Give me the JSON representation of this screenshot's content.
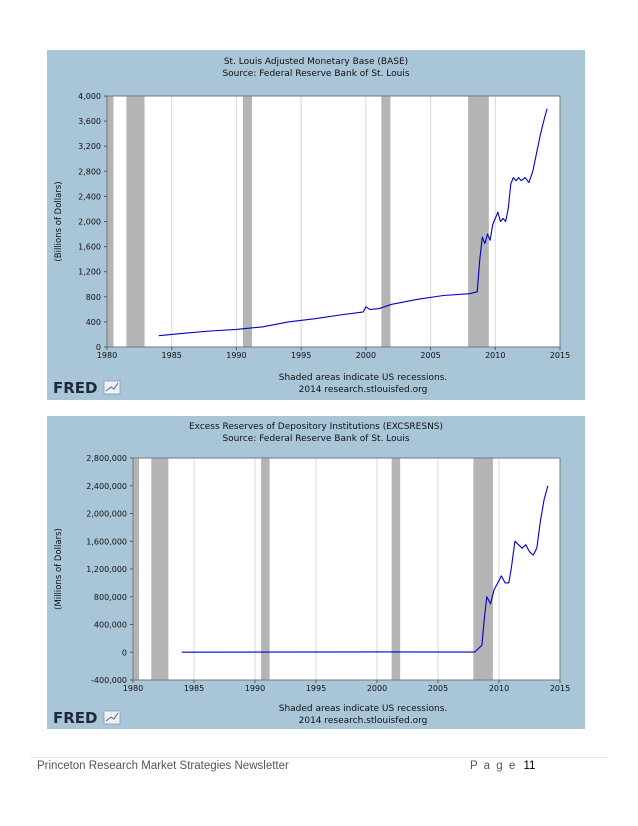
{
  "chart_data": [
    {
      "type": "line",
      "title": "St. Louis Adjusted Monetary Base (BASE)",
      "subtitle": "Source: Federal Reserve Bank of St. Louis",
      "ylabel": "(Billions of Dollars)",
      "xlim": [
        1980,
        2015
      ],
      "ylim": [
        0,
        4000
      ],
      "x_ticks": [
        1980,
        1985,
        1990,
        1995,
        2000,
        2005,
        2010,
        2015
      ],
      "x_tick_labels": [
        "1980",
        "1985",
        "1990",
        "1995",
        "2000",
        "2005",
        "2010",
        "2015"
      ],
      "y_ticks": [
        0,
        400,
        800,
        1200,
        1600,
        2000,
        2400,
        2800,
        3200,
        3600,
        4000
      ],
      "y_tick_labels": [
        "0",
        "400",
        "800",
        "1,200",
        "1,600",
        "2,000",
        "2,400",
        "2,800",
        "3,200",
        "3,600",
        "4,000"
      ],
      "grid": "vertical",
      "recessions": [
        [
          1980.0,
          1980.5
        ],
        [
          1981.5,
          1982.9
        ],
        [
          1990.5,
          1991.2
        ],
        [
          2001.2,
          2001.9
        ],
        [
          2007.9,
          2009.5
        ]
      ],
      "line_color": "#0000cc",
      "series": [
        {
          "x": [
            1984.0,
            1986,
            1988,
            1990,
            1992,
            1994,
            1996,
            1998,
            1999.8,
            2000.0,
            2000.3,
            2001.0,
            2002,
            2004,
            2006,
            2008.0,
            2008.6,
            2008.8,
            2009.0,
            2009.2,
            2009.4,
            2009.6,
            2009.8,
            2010.0,
            2010.2,
            2010.4,
            2010.6,
            2010.8,
            2011.0,
            2011.2,
            2011.4,
            2011.6,
            2011.8,
            2012.0,
            2012.3,
            2012.6,
            2012.9,
            2013.2,
            2013.5,
            2013.8,
            2014.0
          ],
          "y": [
            180,
            220,
            255,
            280,
            320,
            400,
            450,
            510,
            560,
            640,
            600,
            610,
            680,
            760,
            820,
            850,
            880,
            1400,
            1750,
            1650,
            1800,
            1700,
            1950,
            2050,
            2150,
            2000,
            2050,
            2000,
            2200,
            2600,
            2700,
            2650,
            2700,
            2650,
            2700,
            2620,
            2800,
            3100,
            3400,
            3650,
            3800
          ]
        }
      ],
      "footer_note": "Shaded areas indicate US recessions.",
      "footer_source": "2014 research.stlouisfed.org",
      "logo_text": "FRED"
    },
    {
      "type": "line",
      "title": "Excess Reserves of Depository Institutions (EXCSRESNS)",
      "subtitle": "Source: Federal Reserve Bank of St. Louis",
      "ylabel": "(Millions of Dollars)",
      "xlim": [
        1980,
        2015
      ],
      "ylim": [
        -400000,
        2800000
      ],
      "x_ticks": [
        1980,
        1985,
        1990,
        1995,
        2000,
        2005,
        2010,
        2015
      ],
      "x_tick_labels": [
        "1980",
        "1985",
        "1990",
        "1995",
        "2000",
        "2005",
        "2010",
        "2015"
      ],
      "y_ticks": [
        -400000,
        0,
        400000,
        800000,
        1200000,
        1600000,
        2000000,
        2400000,
        2800000
      ],
      "y_tick_labels": [
        "-400,000",
        "0",
        "400,000",
        "800,000",
        "1,200,000",
        "1,600,000",
        "2,000,000",
        "2,400,000",
        "2,800,000"
      ],
      "grid": "vertical",
      "recessions": [
        [
          1980.0,
          1980.5
        ],
        [
          1981.5,
          1982.9
        ],
        [
          1990.5,
          1991.2
        ],
        [
          2001.2,
          2001.9
        ],
        [
          2007.9,
          2009.5
        ]
      ],
      "line_color": "#0000cc",
      "series": [
        {
          "x": [
            1984.0,
            1990,
            2000,
            2008.0,
            2008.6,
            2008.8,
            2009.0,
            2009.3,
            2009.6,
            2009.9,
            2010.2,
            2010.5,
            2010.8,
            2011.0,
            2011.3,
            2011.6,
            2011.9,
            2012.2,
            2012.5,
            2012.8,
            2013.1,
            2013.4,
            2013.7,
            2014.0
          ],
          "y": [
            1000,
            2000,
            5000,
            2000,
            100000,
            500000,
            800000,
            700000,
            900000,
            1000000,
            1100000,
            1000000,
            1000000,
            1200000,
            1600000,
            1550000,
            1500000,
            1550000,
            1450000,
            1400000,
            1500000,
            1900000,
            2200000,
            2400000
          ]
        }
      ],
      "footer_note": "Shaded areas indicate US recessions.",
      "footer_source": "2014 research.stlouisfed.org",
      "logo_text": "FRED"
    }
  ],
  "footer": {
    "newsletter": "Princeton Research Market Strategies Newsletter",
    "page_label": "P a g e",
    "page_number": "11"
  }
}
